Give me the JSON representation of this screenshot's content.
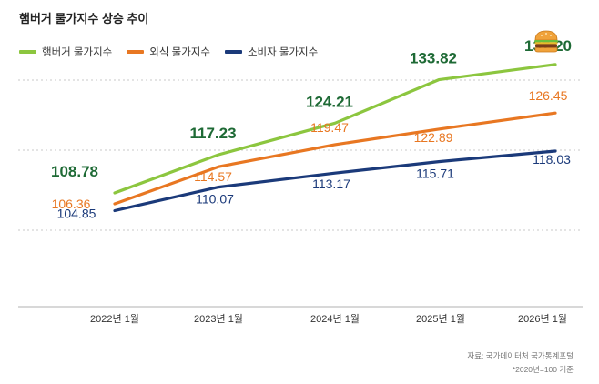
{
  "title": "햄버거 물가지수 상승 추이",
  "source": "자료: 국가데이터처 국가통계포털",
  "footnote": "*2020년=100 기준",
  "chart_data": {
    "type": "line",
    "title": "햄버거 물가지수 상승 추이",
    "x": [
      "2022년 1월",
      "2023년 1월",
      "2024년 1월",
      "2025년 1월",
      "2026년 1월"
    ],
    "ylim": [
      80,
      145
    ],
    "grid": true,
    "legend": "top-left",
    "series": [
      {
        "name": "햄버거 물가지수",
        "color": "#8cc63f",
        "labelColor": "#1e6a35",
        "values": [
          108.78,
          117.23,
          124.21,
          133.82,
          137.2
        ],
        "labels": [
          "108.78",
          "117.23",
          "124.21",
          "133.82",
          "137.20"
        ]
      },
      {
        "name": "외식 물가지수",
        "color": "#e87722",
        "labelColor": "#e87722",
        "values": [
          106.36,
          114.57,
          119.47,
          122.89,
          126.45
        ],
        "labels": [
          "106.36",
          "114.57",
          "119.47",
          "122.89",
          "126.45"
        ]
      },
      {
        "name": "소비자 물가지수",
        "color": "#1b3a7a",
        "labelColor": "#1b3a7a",
        "values": [
          104.85,
          110.07,
          113.17,
          115.71,
          118.03
        ],
        "labels": [
          "104.85",
          "110.07",
          "113.17",
          "115.71",
          "118.03"
        ]
      }
    ]
  }
}
